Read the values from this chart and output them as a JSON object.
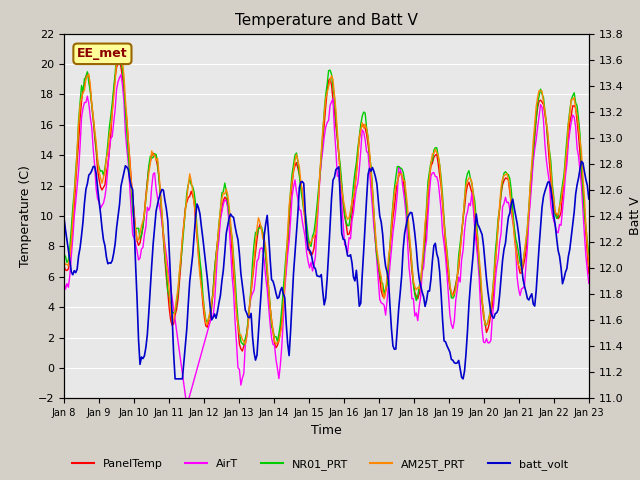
{
  "title": "Temperature and Batt V",
  "xlabel": "Time",
  "ylabel_left": "Temperature (C)",
  "ylabel_right": "Batt V",
  "annotation": "EE_met",
  "ylim_left": [
    -2,
    22
  ],
  "ylim_right": [
    11.0,
    13.8
  ],
  "fig_bg": "#d4d0c8",
  "plot_bg": "#e8e8e8",
  "series": {
    "PanelTemp": {
      "color": "#ff0000",
      "lw": 1.0
    },
    "AirT": {
      "color": "#ff00ff",
      "lw": 1.0
    },
    "NR01_PRT": {
      "color": "#00cc00",
      "lw": 1.0
    },
    "AM25T_PRT": {
      "color": "#ff8800",
      "lw": 1.0
    },
    "batt_volt": {
      "color": "#0000cc",
      "lw": 1.2
    }
  },
  "xtick_labels": [
    "Jan 8",
    "Jan 9",
    "Jan 10",
    "Jan 11",
    "Jan 12",
    "Jan 13",
    "Jan 14",
    "Jan 15",
    "Jan 16",
    "Jan 17",
    "Jan 18",
    "Jan 19",
    "Jan 20",
    "Jan 21",
    "Jan 22",
    "Jan 23"
  ],
  "yticks_left": [
    -2,
    0,
    2,
    4,
    6,
    8,
    10,
    12,
    14,
    16,
    18,
    20,
    22
  ],
  "yticks_right": [
    11.0,
    11.2,
    11.4,
    11.6,
    11.8,
    12.0,
    12.2,
    12.4,
    12.6,
    12.8,
    13.0,
    13.2,
    13.4,
    13.6,
    13.8
  ]
}
